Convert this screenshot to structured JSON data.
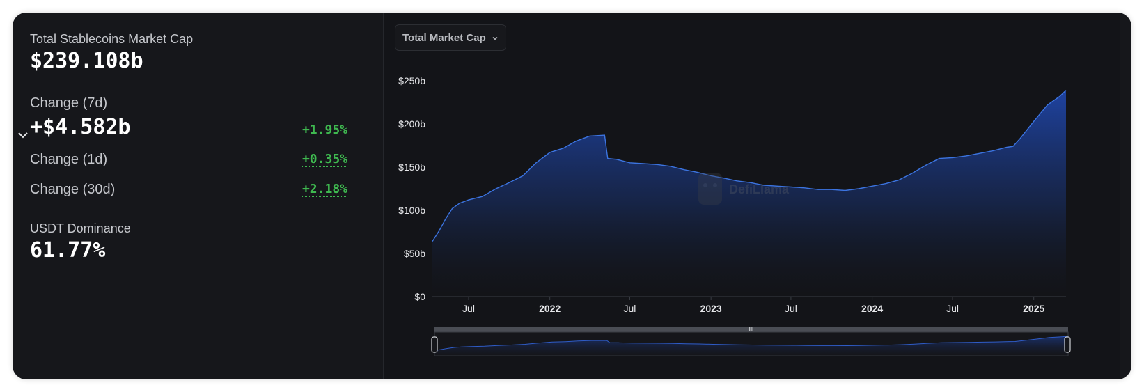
{
  "stats": {
    "mcap_label": "Total Stablecoins Market Cap",
    "mcap_value": "$239.108b",
    "change7d_label": "Change (7d)",
    "change7d_value": "+$4.582b",
    "change7d_pct": "+1.95%",
    "change1d_label": "Change (1d)",
    "change1d_pct": "+0.35%",
    "change30d_label": "Change (30d)",
    "change30d_pct": "+2.18%",
    "dominance_label": "USDT Dominance",
    "dominance_value": "61.77%"
  },
  "controls": {
    "dropdown_label": "Total Market Cap",
    "brush_grip": "III"
  },
  "watermark": "DefiLlama",
  "colors": {
    "line": "#3c74e0",
    "fill_top": "#1f45a8",
    "positive": "#3fb950",
    "background": "#16171b"
  },
  "icons": {
    "expand": "chevron-down-icon",
    "dropdown": "chevron-down-icon",
    "watermark": "llama-logo-icon"
  },
  "chart_data": {
    "type": "area",
    "title": "",
    "xlabel": "",
    "ylabel": "",
    "ylim": [
      0,
      250
    ],
    "yticks": [
      "$0",
      "$50b",
      "$100b",
      "$150b",
      "$200b",
      "$250b"
    ],
    "xticks": [
      "Jul",
      "2022",
      "Jul",
      "2023",
      "Jul",
      "2024",
      "Jul",
      "2025"
    ],
    "xtick_dates": [
      "2021-07-01",
      "2022-01-01",
      "2022-07-01",
      "2023-01-01",
      "2023-07-01",
      "2024-01-01",
      "2024-07-01",
      "2025-01-01"
    ],
    "xlim": [
      "2021-04-10",
      "2025-03-15"
    ],
    "grid": false,
    "series": [
      {
        "x": [
          "2021-04-10",
          "2021-04-25",
          "2021-05-10",
          "2021-05-25",
          "2021-06-10",
          "2021-07-01",
          "2021-08-01",
          "2021-09-01",
          "2021-10-01",
          "2021-11-01",
          "2021-12-01",
          "2022-01-01",
          "2022-02-01",
          "2022-03-01",
          "2022-04-01",
          "2022-05-05",
          "2022-05-12",
          "2022-06-01",
          "2022-07-01",
          "2022-08-01",
          "2022-09-01",
          "2022-10-01",
          "2022-11-01",
          "2022-12-01",
          "2023-01-01",
          "2023-02-01",
          "2023-03-01",
          "2023-04-01",
          "2023-05-01",
          "2023-06-01",
          "2023-07-01",
          "2023-08-01",
          "2023-09-01",
          "2023-10-01",
          "2023-11-01",
          "2023-12-01",
          "2024-01-01",
          "2024-02-01",
          "2024-03-01",
          "2024-04-01",
          "2024-05-01",
          "2024-06-01",
          "2024-07-01",
          "2024-08-01",
          "2024-09-01",
          "2024-10-01",
          "2024-11-01",
          "2024-11-15",
          "2024-12-01",
          "2025-01-01",
          "2025-02-01",
          "2025-03-01",
          "2025-03-15"
        ],
        "values": [
          64,
          76,
          90,
          102,
          108,
          112,
          116,
          125,
          132,
          140,
          155,
          167,
          172,
          180,
          186,
          187,
          160,
          159,
          155,
          154,
          153,
          151,
          147,
          144,
          140,
          137,
          134,
          132,
          129,
          128,
          127,
          126,
          124,
          124,
          123,
          125,
          128,
          131,
          135,
          143,
          152,
          160,
          161,
          163,
          166,
          169,
          173,
          174,
          183,
          203,
          222,
          232,
          239
        ]
      }
    ]
  }
}
